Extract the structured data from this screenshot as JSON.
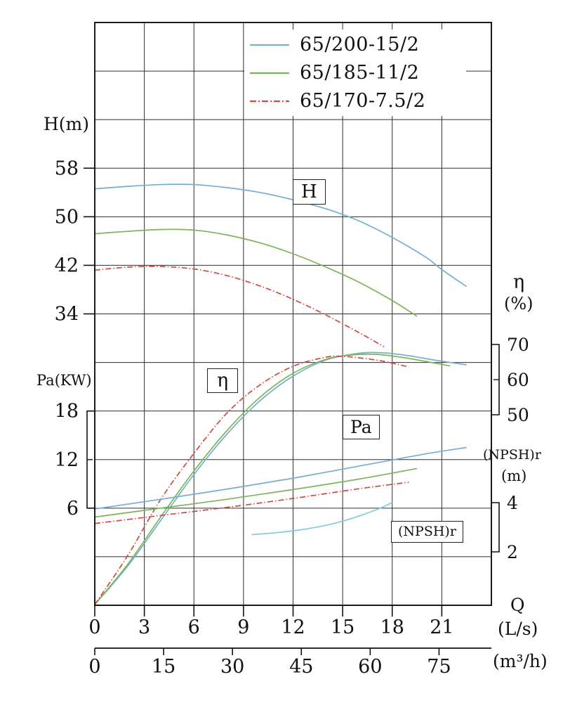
{
  "page": {
    "background": "#ffffff"
  },
  "legend": {
    "entries": [
      {
        "label": "65/200-15/2",
        "color": "#74aed3",
        "dash": ""
      },
      {
        "label": "65/185-11/2",
        "color": "#7cb556",
        "dash": ""
      },
      {
        "label": "65/170-7.5/2",
        "color": "#cf4a42",
        "dash": "9 3 2 3"
      }
    ]
  },
  "labels": {
    "h_axis_title": "H(m)",
    "pa_axis_title": "Pa(KW)",
    "eta_axis_symbol": "η",
    "eta_axis_unit": "(%)",
    "npshr_axis_title": "(NPSH)r",
    "npshr_axis_unit": "(m)",
    "q_symbol": "Q",
    "q_unit_ls": "(L/s)",
    "q_unit_m3h": "(m³/h)",
    "curve_H": "H",
    "curve_eta": "η",
    "curve_Pa": "Pa",
    "curve_npshr": "(NPSH)r"
  },
  "chart_data": {
    "type": "line",
    "x": {
      "label": "Q",
      "unit_primary": "L/s",
      "unit_secondary": "m³/h",
      "ticks_primary": [
        0,
        3,
        6,
        9,
        12,
        15,
        18,
        21
      ],
      "ticks_secondary": [
        0,
        15,
        30,
        45,
        60,
        75
      ],
      "range_primary": [
        0,
        24
      ],
      "secondary_per_primary": 3.6
    },
    "y_axes": {
      "H": {
        "unit": "m",
        "ticks": [
          58,
          50,
          42,
          34
        ]
      },
      "Pa": {
        "unit": "KW",
        "ticks": [
          18,
          12,
          6
        ]
      },
      "eta": {
        "unit": "%",
        "ticks": [
          70,
          60,
          50
        ]
      },
      "npsh": {
        "unit": "m",
        "ticks": [
          4,
          2
        ]
      }
    },
    "grid": {
      "cols": 8,
      "rows": 12,
      "shown": true
    },
    "legend_position": "top-inside",
    "series": [
      {
        "pump": "65/200-15/2",
        "quantity": "H",
        "axis": "H",
        "color": "#74aed3",
        "dash": "",
        "points": [
          [
            0,
            54.6
          ],
          [
            2,
            55.0
          ],
          [
            4,
            55.3
          ],
          [
            6,
            55.3
          ],
          [
            8,
            54.8
          ],
          [
            10,
            54.0
          ],
          [
            12,
            52.8
          ],
          [
            14,
            51.3
          ],
          [
            16,
            49.3
          ],
          [
            18,
            46.6
          ],
          [
            20,
            43.4
          ],
          [
            21,
            41.3
          ],
          [
            22.5,
            38.5
          ]
        ]
      },
      {
        "pump": "65/185-11/2",
        "quantity": "H",
        "axis": "H",
        "color": "#7cb556",
        "dash": "",
        "points": [
          [
            0,
            47.2
          ],
          [
            2,
            47.6
          ],
          [
            4,
            47.9
          ],
          [
            6,
            47.8
          ],
          [
            8,
            47.0
          ],
          [
            10,
            45.7
          ],
          [
            12,
            43.9
          ],
          [
            14,
            41.7
          ],
          [
            16,
            39.2
          ],
          [
            18,
            36.2
          ],
          [
            19.5,
            33.6
          ]
        ]
      },
      {
        "pump": "65/170-7.5/2",
        "quantity": "H",
        "axis": "H",
        "color": "#cf4a42",
        "dash": "8 3 1.5 3",
        "points": [
          [
            0,
            41.2
          ],
          [
            2,
            41.7
          ],
          [
            4,
            41.8
          ],
          [
            6,
            41.4
          ],
          [
            8,
            40.3
          ],
          [
            10,
            38.6
          ],
          [
            12,
            36.4
          ],
          [
            14,
            33.8
          ],
          [
            16,
            30.9
          ],
          [
            17.5,
            28.6
          ]
        ]
      },
      {
        "pump": "65/200-15/2",
        "quantity": "eta",
        "axis": "eta",
        "color": "#74aed3",
        "dash": "",
        "points": [
          [
            0,
            -4
          ],
          [
            2,
            7
          ],
          [
            4,
            20
          ],
          [
            6,
            33
          ],
          [
            8,
            44.5
          ],
          [
            10,
            54
          ],
          [
            12,
            61
          ],
          [
            14,
            65.6
          ],
          [
            16,
            67.5
          ],
          [
            17.5,
            67.6
          ],
          [
            19,
            66.8
          ],
          [
            20.5,
            65.6
          ],
          [
            22.5,
            64.2
          ]
        ]
      },
      {
        "pump": "65/185-11/2",
        "quantity": "eta",
        "axis": "eta",
        "color": "#7cb556",
        "dash": "",
        "points": [
          [
            0,
            -4
          ],
          [
            2,
            7.5
          ],
          [
            4,
            21
          ],
          [
            6,
            34
          ],
          [
            8,
            45.5
          ],
          [
            10,
            55
          ],
          [
            12,
            61.8
          ],
          [
            14,
            65.8
          ],
          [
            15.5,
            67.0
          ],
          [
            17,
            67.2
          ],
          [
            18.5,
            66.4
          ],
          [
            20,
            65.2
          ],
          [
            21.5,
            63.9
          ]
        ]
      },
      {
        "pump": "65/170-7.5/2",
        "quantity": "eta",
        "axis": "eta",
        "color": "#cf4a42",
        "dash": "8 3 1.5 3",
        "points": [
          [
            0,
            -4
          ],
          [
            2,
            10
          ],
          [
            4,
            26
          ],
          [
            6,
            39
          ],
          [
            8,
            50.5
          ],
          [
            10,
            58.5
          ],
          [
            12,
            63.8
          ],
          [
            14,
            66.4
          ],
          [
            15,
            66.6
          ],
          [
            16,
            66.2
          ],
          [
            17.5,
            65.2
          ],
          [
            19,
            63.6
          ]
        ]
      },
      {
        "pump": "65/200-15/2",
        "quantity": "Pa",
        "axis": "Pa",
        "color": "#74aed3",
        "dash": "",
        "points": [
          [
            0,
            5.9
          ],
          [
            4,
            7.1
          ],
          [
            8,
            8.35
          ],
          [
            12,
            9.7
          ],
          [
            16,
            11.2
          ],
          [
            20,
            12.7
          ],
          [
            22.5,
            13.5
          ]
        ]
      },
      {
        "pump": "65/185-11/2",
        "quantity": "Pa",
        "axis": "Pa",
        "color": "#7cb556",
        "dash": "",
        "points": [
          [
            0,
            4.9
          ],
          [
            4,
            6.0
          ],
          [
            8,
            7.1
          ],
          [
            12,
            8.3
          ],
          [
            16,
            9.6
          ],
          [
            19.5,
            10.9
          ]
        ]
      },
      {
        "pump": "65/170-7.5/2",
        "quantity": "Pa",
        "axis": "Pa",
        "color": "#cf4a42",
        "dash": "8 3 1.5 3",
        "points": [
          [
            0,
            4.1
          ],
          [
            4,
            5.1
          ],
          [
            8,
            6.1
          ],
          [
            12,
            7.2
          ],
          [
            16,
            8.4
          ],
          [
            19,
            9.2
          ]
        ]
      },
      {
        "pump": "65/200-15/2",
        "quantity": "NPSHr",
        "axis": "npsh",
        "color": "#7fcbe0",
        "dash": "",
        "points": [
          [
            9.5,
            2.7
          ],
          [
            11,
            2.78
          ],
          [
            12.5,
            2.9
          ],
          [
            14,
            3.08
          ],
          [
            15.5,
            3.35
          ],
          [
            17,
            3.7
          ],
          [
            18,
            4.0
          ]
        ]
      }
    ]
  }
}
